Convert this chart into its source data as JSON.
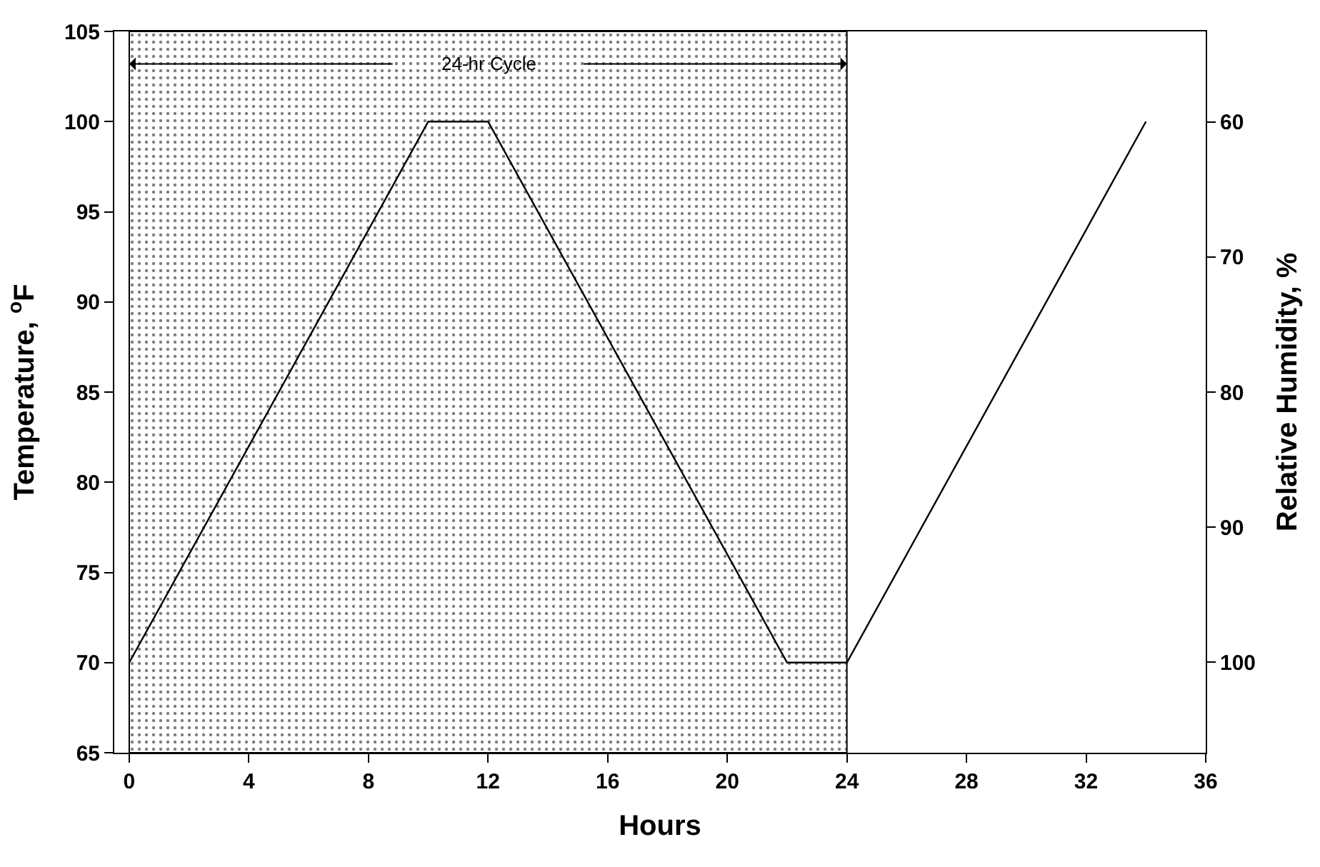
{
  "chart_data": {
    "type": "line",
    "xlabel": "Hours",
    "ylabel": "Temperature, $^{o}$F",
    "y2label": "Relative Humidity, %",
    "x": [
      0,
      10,
      12,
      22,
      24,
      34
    ],
    "series": [
      {
        "color": "#000000",
        "values": [
          70,
          100,
          100,
          70,
          70,
          100
        ]
      }
    ],
    "xlim": [
      -0.5,
      36
    ],
    "xticks": [
      0,
      4,
      8,
      12,
      16,
      20,
      24,
      28,
      32,
      36
    ],
    "ylim": [
      65,
      105
    ],
    "yticks": [
      65,
      70,
      75,
      80,
      85,
      90,
      95,
      100,
      105
    ],
    "y2lim": [
      106.7,
      53.3
    ],
    "y2ticks": [
      60,
      70,
      80,
      90,
      100
    ],
    "bands": [
      {
        "axis": "x",
        "from": 0,
        "to": 24,
        "label": "24-hr Cycle",
        "color": "#000000"
      }
    ],
    "marker": "none",
    "line_style": "solid"
  }
}
